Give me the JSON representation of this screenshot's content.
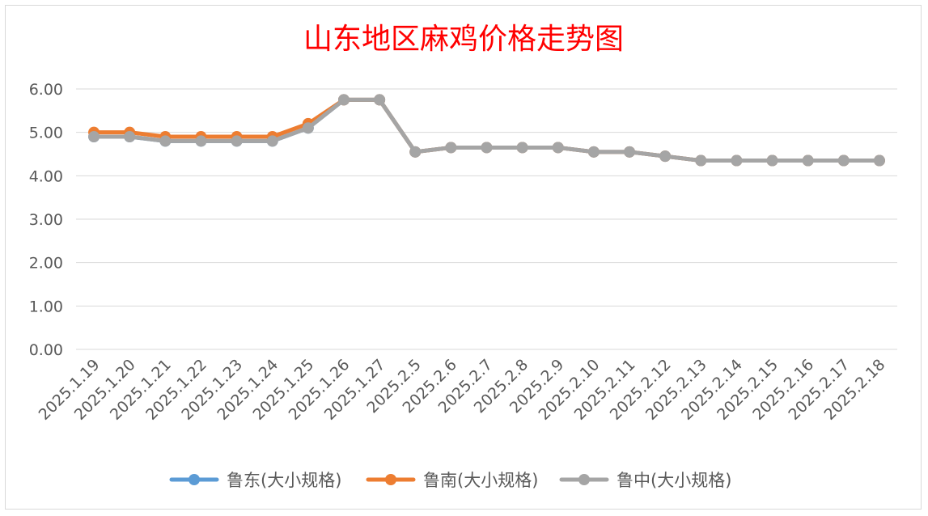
{
  "chart_data": {
    "type": "line",
    "title": "山东地区麻鸡价格走势图",
    "xlabel": "",
    "ylabel": "",
    "ylim": [
      0,
      6
    ],
    "ytick_labels": [
      "0.00",
      "1.00",
      "2.00",
      "3.00",
      "4.00",
      "5.00",
      "6.00"
    ],
    "grid": true,
    "legend_position": "bottom",
    "categories": [
      "2025.1.19",
      "2025.1.20",
      "2025.1.21",
      "2025.1.22",
      "2025.1.23",
      "2025.1.24",
      "2025.1.25",
      "2025.1.26",
      "2025.1.27",
      "2025.2.5",
      "2025.2.6",
      "2025.2.7",
      "2025.2.8",
      "2025.2.9",
      "2025.2.10",
      "2025.2.11",
      "2025.2.12",
      "2025.2.13",
      "2025.2.14",
      "2025.2.15",
      "2025.2.16",
      "2025.2.17",
      "2025.2.18"
    ],
    "series": [
      {
        "name": "鲁东(大小规格)",
        "color": "#5b9bd5",
        "values": [
          4.9,
          4.9,
          4.8,
          4.8,
          4.8,
          4.8,
          5.1,
          5.75,
          5.75,
          4.55,
          4.65,
          4.65,
          4.65,
          4.65,
          4.55,
          4.55,
          4.45,
          4.35,
          4.35,
          4.35,
          4.35,
          4.35,
          4.35
        ]
      },
      {
        "name": "鲁南(大小规格)",
        "color": "#ed7d31",
        "values": [
          5.0,
          5.0,
          4.9,
          4.9,
          4.9,
          4.9,
          5.2,
          5.75,
          5.75,
          4.55,
          4.65,
          4.65,
          4.65,
          4.65,
          4.55,
          4.55,
          4.45,
          4.35,
          4.35,
          4.35,
          4.35,
          4.35,
          4.35
        ]
      },
      {
        "name": "鲁中(大小规格)",
        "color": "#a5a5a5",
        "values": [
          4.9,
          4.9,
          4.8,
          4.8,
          4.8,
          4.8,
          5.1,
          5.75,
          5.75,
          4.55,
          4.65,
          4.65,
          4.65,
          4.65,
          4.55,
          4.55,
          4.45,
          4.35,
          4.35,
          4.35,
          4.35,
          4.35,
          4.35
        ]
      }
    ]
  }
}
